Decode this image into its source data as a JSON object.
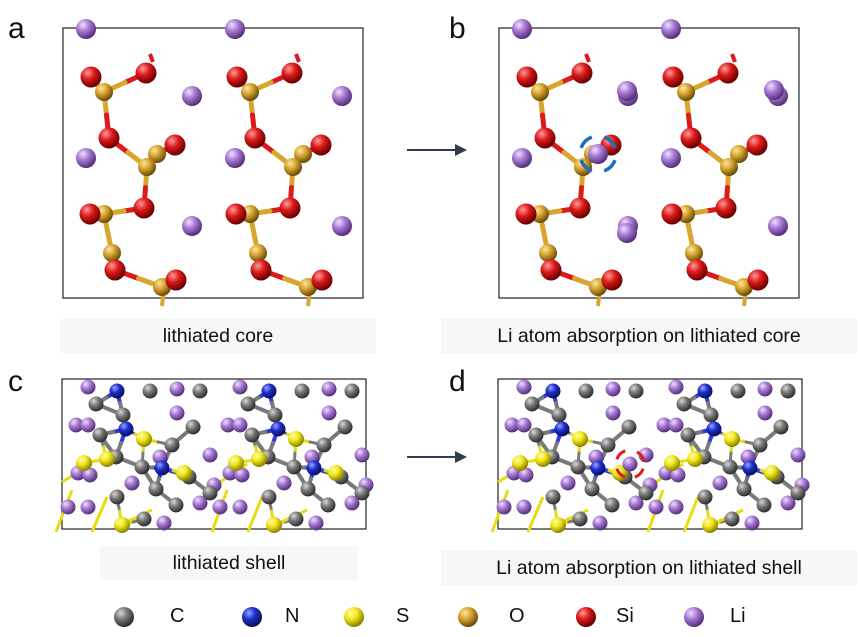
{
  "panels": [
    {
      "letter": "a",
      "caption": "lithiated core"
    },
    {
      "letter": "b",
      "caption": "Li atom absorption on lithiated core"
    },
    {
      "letter": "c",
      "caption": "lithiated shell"
    },
    {
      "letter": "d",
      "caption": "Li atom absorption on lithiated shell"
    }
  ],
  "legend": [
    {
      "label": "C",
      "color": "#6e6e6e"
    },
    {
      "label": "N",
      "color": "#1f2fd0"
    },
    {
      "label": "S",
      "color": "#f3ee1e"
    },
    {
      "label": "O",
      "color": "#d8a52e"
    },
    {
      "label": "Si",
      "color": "#dd1a1a"
    },
    {
      "label": "Li",
      "color": "#a779d4"
    }
  ],
  "colors": {
    "highlight_circle_b": "#1f6fb5",
    "highlight_circle_d": "#e01b1b",
    "arrow": "#2f3d4f"
  }
}
